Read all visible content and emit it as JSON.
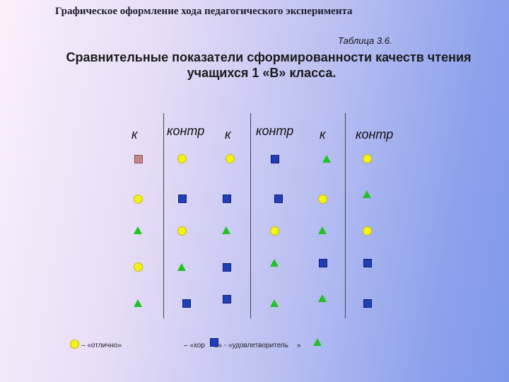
{
  "header": {
    "title": "Графическое оформление хода педагогического эксперимента"
  },
  "table_label": "Таблица 3.6.",
  "main_title": {
    "line1": "Сравнительные показатели сформированности качеств чтения",
    "line2": "учащихся 1 «В» класса."
  },
  "columns": [
    "к",
    "контр",
    "к",
    "контр",
    "к",
    "контр"
  ],
  "marker_colors": {
    "excellent": "#f3f31a",
    "good": "#1f3fb6",
    "satisfactory": "#22c222"
  },
  "legend": {
    "excellent": "– «отлично»",
    "good_prefix": "– «хор",
    "good_suffix": "о» - «удовлетворитель",
    "good_end": "»"
  }
}
